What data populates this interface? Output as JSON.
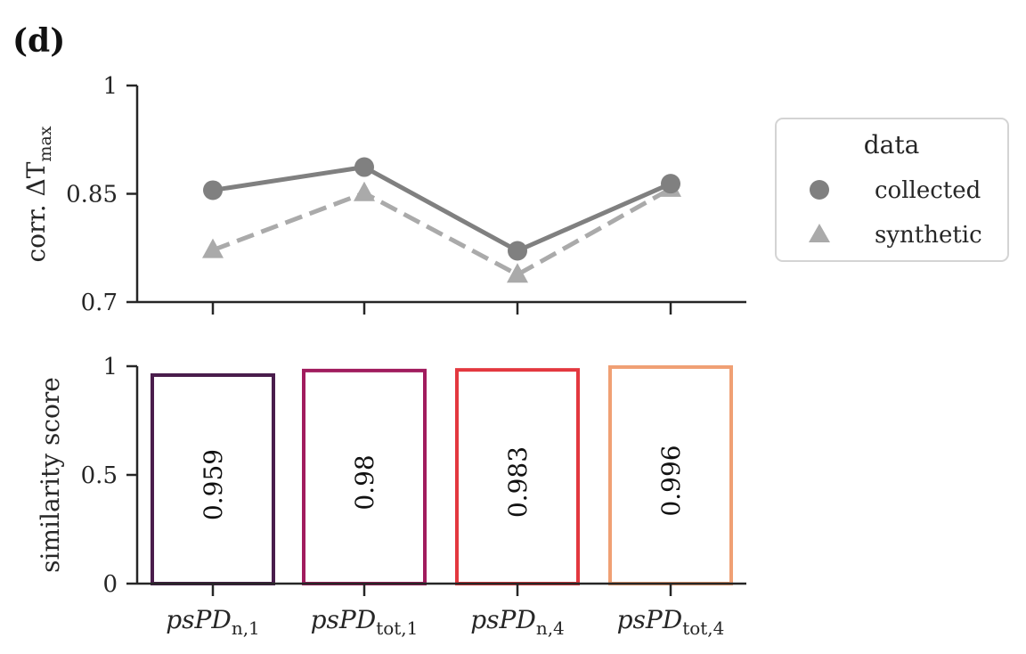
{
  "panel_label": "(d)",
  "chart_data": [
    {
      "type": "line",
      "categories": [
        "psPD",
        "psPD",
        "psPD",
        "psPD"
      ],
      "category_subscripts": [
        "n,1",
        "tot,1",
        "n,4",
        "tot,4"
      ],
      "ylabel": "corr. ΔT",
      "ylabel_subscript": "max",
      "ylim": [
        0.7,
        1.0
      ],
      "yticks": [
        0.7,
        0.85,
        1.0
      ],
      "ytick_labels": [
        "0.7",
        "0.85",
        "1"
      ],
      "series": [
        {
          "name": "collected",
          "values": [
            0.855,
            0.887,
            0.771,
            0.864
          ],
          "color": "#808080",
          "marker": "circle",
          "linestyle": "solid"
        },
        {
          "name": "synthetic",
          "values": [
            0.772,
            0.851,
            0.738,
            0.857
          ],
          "color": "#aaaaaa",
          "marker": "triangle",
          "linestyle": "dashed"
        }
      ],
      "legend": {
        "title": "data",
        "placement": "right",
        "entries": [
          "collected",
          "synthetic"
        ]
      }
    },
    {
      "type": "bar",
      "categories": [
        "psPD",
        "psPD",
        "psPD",
        "psPD"
      ],
      "category_subscripts": [
        "n,1",
        "tot,1",
        "n,4",
        "tot,4"
      ],
      "values": [
        0.959,
        0.98,
        0.983,
        0.996
      ],
      "value_labels": [
        "0.959",
        "0.98",
        "0.983",
        "0.996"
      ],
      "bar_colors": [
        "#4a1d4c",
        "#a11c5e",
        "#e3383f",
        "#f0a074"
      ],
      "ylabel": "similarity score",
      "ylim": [
        0,
        1
      ],
      "yticks": [
        0,
        0.5,
        1
      ],
      "ytick_labels": [
        "0",
        "0.5",
        "1"
      ]
    }
  ]
}
